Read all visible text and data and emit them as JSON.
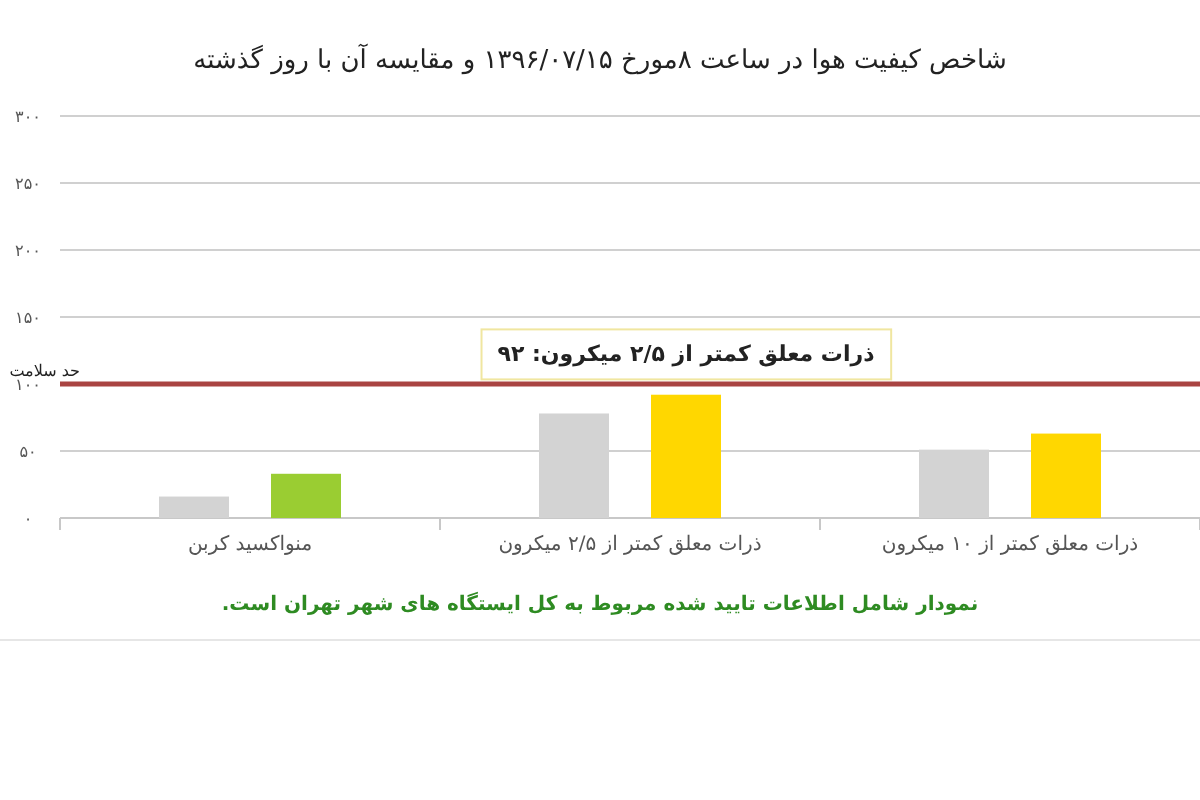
{
  "chart_data": {
    "type": "bar",
    "title": "شاخص کیفیت هوا در ساعت ۸مورخ ۱۳۹۶/۰۷/۱۵ و مقایسه آن با روز گذشته",
    "categories": [
      "منواکسید کربن",
      "ذرات معلق کمتر از ۲/۵ میکرون",
      "ذرات معلق کمتر از ۱۰ میکرون"
    ],
    "series": [
      {
        "color": "#d3d3d3",
        "values": [
          16,
          78,
          51
        ]
      },
      {
        "colors": [
          "#9acd32",
          "#ffd700",
          "#ffd700"
        ],
        "values": [
          33,
          92,
          63
        ]
      }
    ],
    "ylim": [
      0,
      300
    ],
    "yticks": [
      {
        "value": 0,
        "label": "۰"
      },
      {
        "value": 50,
        "label": "۵۰"
      },
      {
        "value": 100,
        "label": "۱۰۰"
      },
      {
        "value": 150,
        "label": "۱۵۰"
      },
      {
        "value": 200,
        "label": "۲۰۰"
      },
      {
        "value": 250,
        "label": "۲۵۰"
      },
      {
        "value": 300,
        "label": "۳۰۰"
      }
    ],
    "grid": "y",
    "ref_lines": [
      {
        "axis": "y",
        "value": 100,
        "label": "حد سلامت",
        "color": "#a94442"
      }
    ],
    "annotations": [
      "ذرات معلق کمتر از ۲/۵ میکرون: ۹۲",
      "نمودار شامل اطلاعات تایید شده مربوط به کل ایستگاه های شهر تهران است."
    ]
  }
}
